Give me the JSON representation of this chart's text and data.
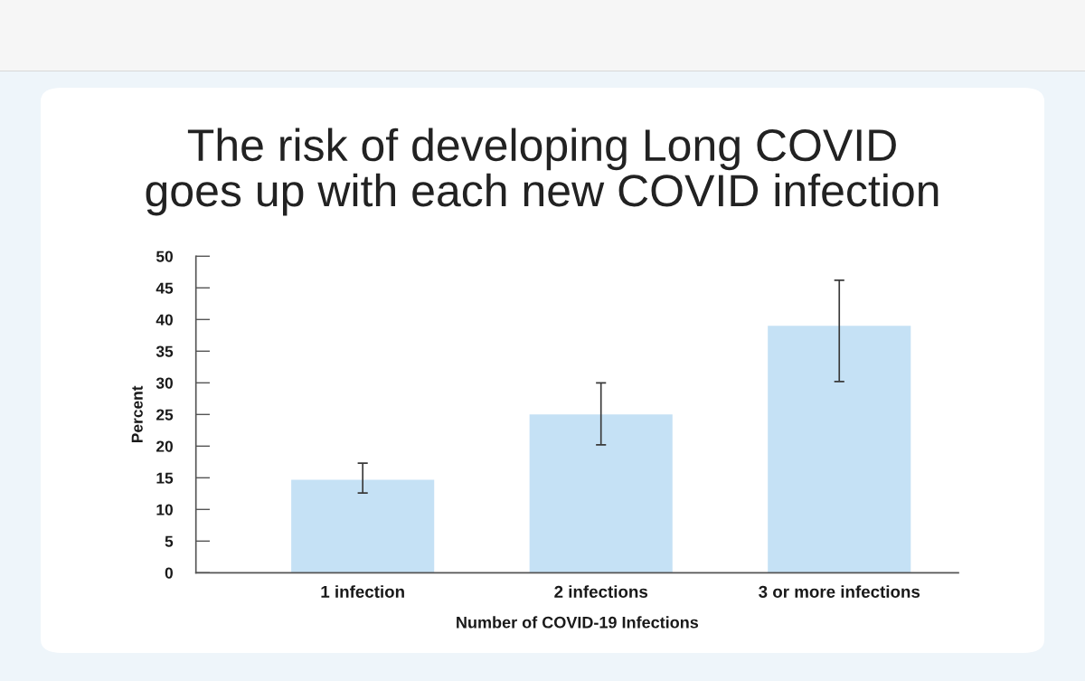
{
  "chart_data": {
    "type": "bar",
    "title": "The risk of developing Long COVID\ngoes up with each new COVID infection",
    "xlabel": "Number of COVID-19 Infections",
    "ylabel": "Percent",
    "categories": [
      "1 infection",
      "2 infections",
      "3 or more infections"
    ],
    "values": [
      14.7,
      25.0,
      39.0
    ],
    "errors": [
      [
        12.6,
        17.3
      ],
      [
        20.2,
        30.0
      ],
      [
        30.2,
        46.2
      ]
    ],
    "color": "#c5e1f5",
    "ylim": [
      0,
      50
    ],
    "yticks": [
      0,
      5,
      10,
      15,
      20,
      25,
      30,
      35,
      40,
      45,
      50
    ]
  }
}
